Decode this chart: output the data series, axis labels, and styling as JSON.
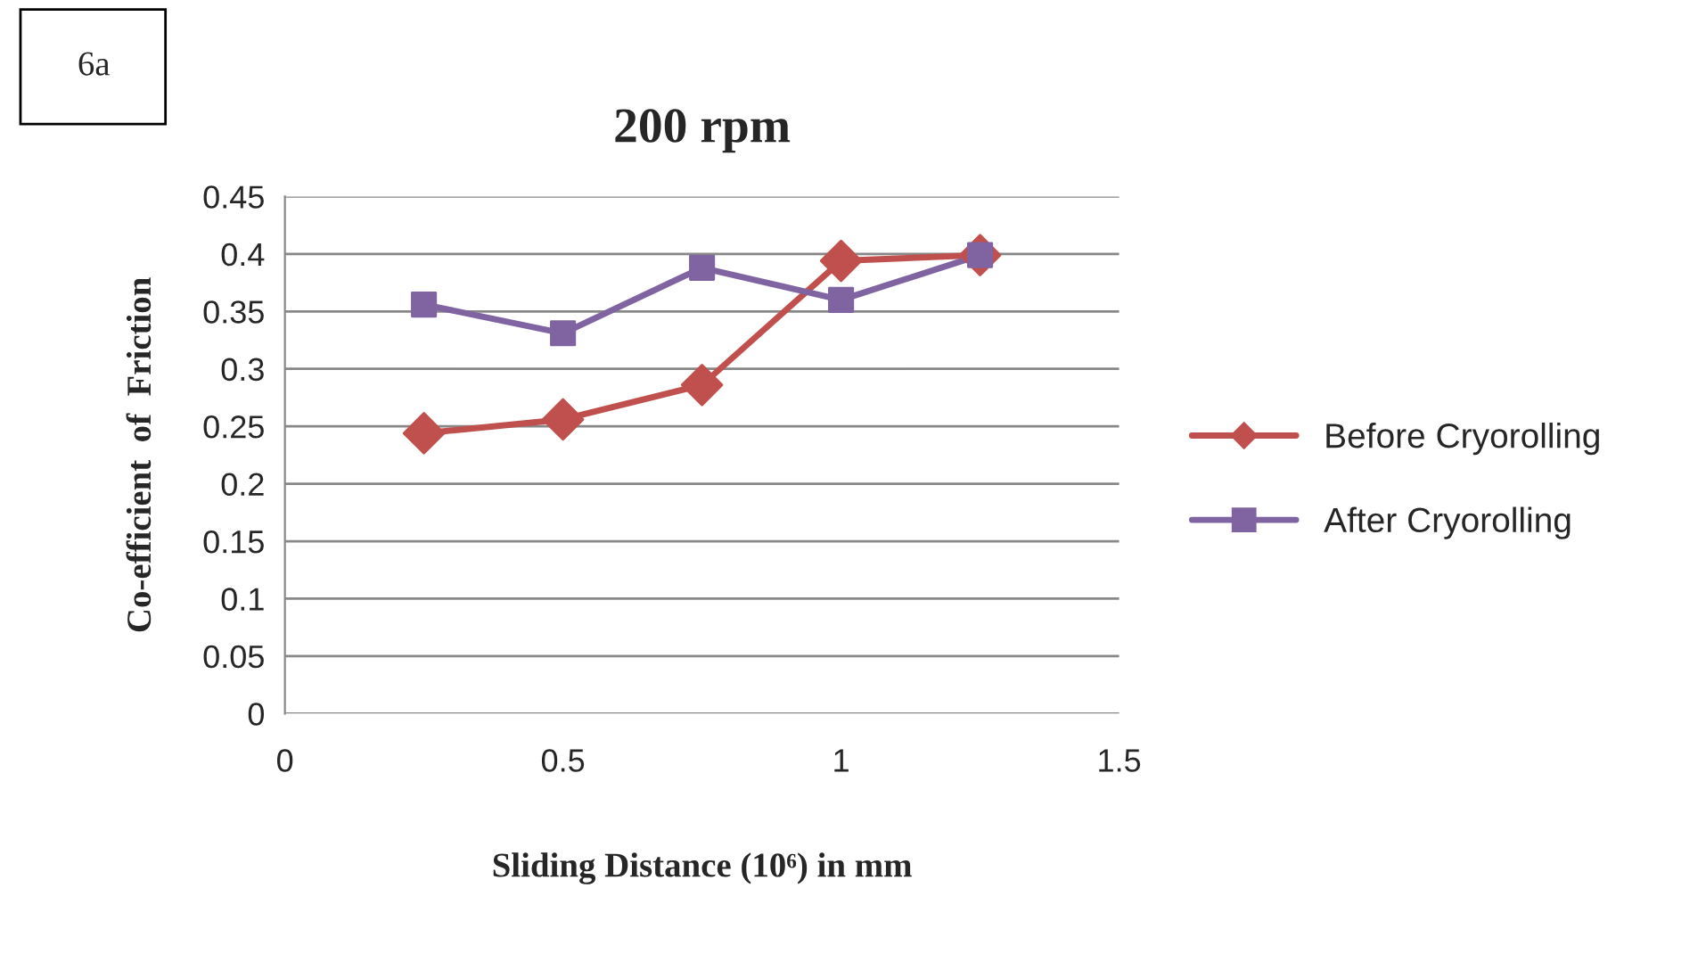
{
  "chart_data": {
    "type": "line",
    "title": "200 rpm",
    "xlabel": "Sliding Distance (10⁶) in mm",
    "ylabel": "Co-efficient  of  Friction",
    "annotations": [
      "6a"
    ],
    "series": [
      {
        "name": "Before Cryorolling",
        "color": "#c0504d",
        "marker": "diamond",
        "x": [
          0.25,
          0.5,
          0.75,
          1.0,
          1.25
        ],
        "values": [
          0.244,
          0.256,
          0.286,
          0.394,
          0.399
        ]
      },
      {
        "name": "After Cryorolling",
        "color": "#8064a2",
        "marker": "square",
        "x": [
          0.25,
          0.5,
          0.75,
          1.0,
          1.25
        ],
        "values": [
          0.356,
          0.331,
          0.388,
          0.36,
          0.399
        ]
      }
    ],
    "xlim": [
      0,
      1.5
    ],
    "xticks": [
      0,
      0.5,
      1,
      1.5
    ],
    "ylim": [
      0,
      0.45
    ],
    "yticks": [
      0,
      0.05,
      0.1,
      0.15,
      0.2,
      0.25,
      0.3,
      0.35,
      0.4,
      0.45
    ],
    "grid": "y",
    "legend": "right",
    "line_style": "solid"
  }
}
